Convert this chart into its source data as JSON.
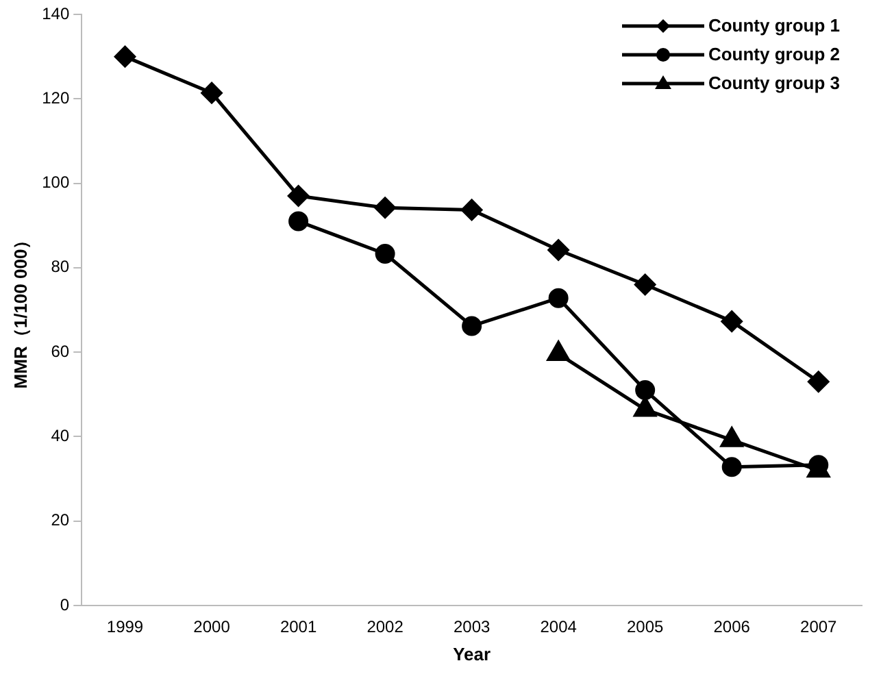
{
  "chart_data": {
    "type": "line",
    "xlabel": "Year",
    "ylabel": "MMR（1/100 000）",
    "categories": [
      "1999",
      "2000",
      "2001",
      "2002",
      "2003",
      "2004",
      "2005",
      "2006",
      "2007"
    ],
    "series": [
      {
        "name": "County group 1",
        "color": "#000000",
        "marker": "diamond",
        "values": [
          130,
          121.4,
          97,
          94.2,
          93.7,
          84.2,
          76,
          67.3,
          53
        ]
      },
      {
        "name": "County group 2",
        "color": "#000000",
        "marker": "circle",
        "values": [
          null,
          null,
          91,
          83.3,
          66.2,
          72.8,
          51,
          32.8,
          33.3
        ]
      },
      {
        "name": "County group 3",
        "color": "#000000",
        "marker": "triangle",
        "values": [
          null,
          null,
          null,
          null,
          null,
          59.6,
          46.4,
          39.2,
          32
        ]
      }
    ],
    "ylim": [
      0,
      140
    ],
    "yticks": [
      0,
      20,
      40,
      60,
      80,
      100,
      120,
      140
    ],
    "grid": false,
    "legend": "top right",
    "line_style": "solid"
  }
}
